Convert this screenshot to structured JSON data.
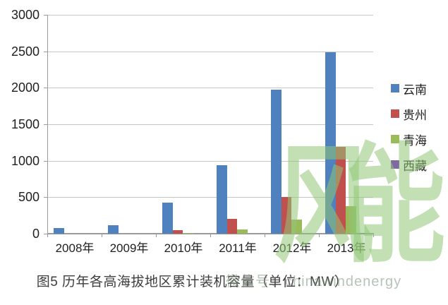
{
  "chart_data": {
    "type": "bar",
    "title": "图5 历年各高海拔地区累计装机容量（单位：MW）",
    "categories": [
      "2008年",
      "2009年",
      "2010年",
      "2011年",
      "2012年",
      "2013年"
    ],
    "series": [
      {
        "name": "云南",
        "color": "#4e81bd",
        "values": [
          75,
          120,
          430,
          940,
          1970,
          2490
        ]
      },
      {
        "name": "贵州",
        "color": "#bf504d",
        "values": [
          0,
          0,
          45,
          200,
          500,
          1190
        ]
      },
      {
        "name": "青海",
        "color": "#9abb59",
        "values": [
          0,
          0,
          12,
          60,
          190,
          380
        ]
      },
      {
        "name": "西藏",
        "color": "#7e69a3",
        "values": [
          0,
          0,
          0,
          0,
          0,
          8
        ]
      }
    ],
    "ylim": [
      0,
      3000
    ],
    "ytick_step": 500,
    "grid": true,
    "legend_position": "right"
  },
  "watermark": {
    "large_text": "风能",
    "small_text": "微信号：chinawindenergy"
  },
  "colors": {
    "gridline": "#c6c6c6",
    "axis": "#9a9a9a",
    "tick_text": "#1f1f1f",
    "caption_text": "#3d3d3d",
    "watermark_green": "#90c677"
  }
}
